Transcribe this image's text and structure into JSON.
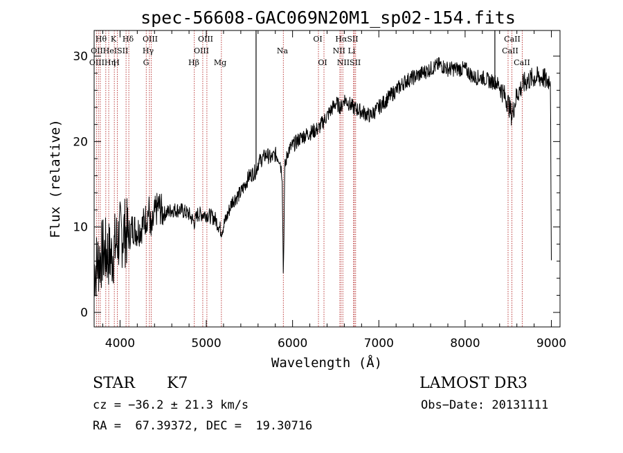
{
  "chart_data": {
    "type": "line",
    "title": "spec-56608-GAC069N20M1_sp02-154.fits",
    "xlabel": "Wavelength (Å)",
    "ylabel": "Flux (relative)",
    "xlim": [
      3700,
      9100
    ],
    "ylim": [
      -1.7,
      33
    ],
    "x_ticks": [
      4000,
      5000,
      6000,
      7000,
      8000,
      9000
    ],
    "x_tick_labels": [
      "4000",
      "5000",
      "6000",
      "7000",
      "8000",
      "9000"
    ],
    "y_ticks": [
      0,
      10,
      20,
      30
    ],
    "y_tick_labels": [
      "0",
      "10",
      "20",
      "30"
    ],
    "series": [
      {
        "name": "spectrum",
        "x": [
          3700,
          3750,
          3800,
          3850,
          3900,
          3950,
          4000,
          4050,
          4100,
          4150,
          4200,
          4250,
          4300,
          4340,
          4360,
          4400,
          4450,
          4500,
          4600,
          4700,
          4800,
          4861,
          4900,
          5000,
          5100,
          5175,
          5250,
          5300,
          5400,
          5500,
          5577,
          5600,
          5650,
          5700,
          5750,
          5800,
          5850,
          5880,
          5893,
          5910,
          5950,
          6000,
          6100,
          6200,
          6300,
          6400,
          6500,
          6563,
          6600,
          6700,
          6800,
          6900,
          7000,
          7100,
          7200,
          7300,
          7400,
          7500,
          7600,
          7700,
          7800,
          7900,
          8000,
          8100,
          8200,
          8300,
          8350,
          8400,
          8450,
          8500,
          8542,
          8600,
          8662,
          8700,
          8800,
          8900,
          8950,
          8990,
          9000
        ],
        "y": [
          5,
          6,
          7,
          7,
          6.5,
          8,
          9,
          9.5,
          9,
          10,
          9.5,
          10,
          11,
          12,
          9,
          11.5,
          12.5,
          11.5,
          12,
          12,
          11.5,
          10.5,
          11.5,
          11.5,
          11,
          9.5,
          11.5,
          13,
          14,
          16,
          16.5,
          17.5,
          18,
          18.5,
          18,
          18.5,
          18,
          16,
          4,
          17,
          19,
          19.5,
          20.5,
          21,
          21.5,
          23,
          24.5,
          24,
          25,
          24,
          23.5,
          23,
          24,
          25,
          26,
          27,
          27.5,
          28,
          28.5,
          29,
          28.5,
          28.5,
          28.5,
          27.5,
          27.5,
          27,
          27,
          26.5,
          25.5,
          24.5,
          23,
          25.5,
          26.5,
          27,
          27.5,
          27.5,
          27,
          27.5,
          5
        ]
      }
    ],
    "spikes": [
      {
        "x": 5577,
        "y": 33
      },
      {
        "x": 8345,
        "y": 33
      }
    ],
    "line_markers": [
      {
        "x": 3727,
        "label": "OII"
      },
      {
        "x": 3750,
        "label": "OIII"
      },
      {
        "x": 3771,
        "label": "Hθ"
      },
      {
        "x": 3835,
        "label": "Hη"
      },
      {
        "x": 3869,
        "label": "HeI"
      },
      {
        "x": 3934,
        "label": "K"
      },
      {
        "x": 3969,
        "label": "H"
      },
      {
        "x": 4070,
        "label": "SII"
      },
      {
        "x": 4102,
        "label": "Hδ"
      },
      {
        "x": 4304,
        "label": "G"
      },
      {
        "x": 4341,
        "label": "Hγ"
      },
      {
        "x": 4363,
        "label": "OIII"
      },
      {
        "x": 4861,
        "label": "Hβ"
      },
      {
        "x": 4959,
        "label": "OIII"
      },
      {
        "x": 5007,
        "label": "OIII"
      },
      {
        "x": 5175,
        "label": "Mg"
      },
      {
        "x": 5893,
        "label": "Na"
      },
      {
        "x": 6300,
        "label": "OI"
      },
      {
        "x": 6364,
        "label": "OI"
      },
      {
        "x": 6548,
        "label": "NII"
      },
      {
        "x": 6563,
        "label": "Hα"
      },
      {
        "x": 6583,
        "label": "NII"
      },
      {
        "x": 6707,
        "label": "Li"
      },
      {
        "x": 6716,
        "label": "SII"
      },
      {
        "x": 6731,
        "label": "SII"
      },
      {
        "x": 8498,
        "label": "CaII"
      },
      {
        "x": 8542,
        "label": "CaII"
      },
      {
        "x": 8662,
        "label": "CaII"
      }
    ],
    "line_label_text": [
      "Hθ",
      "K",
      "Hδ",
      "OIII",
      "OIII",
      "OI",
      "HαSII",
      "CaII",
      "OII",
      "HeISII",
      "Hγ",
      "OIII",
      "Na",
      "NII Li",
      "CaII",
      "OIIIHη",
      "H",
      "G",
      "Hβ",
      "Mg",
      "OI",
      "NIISII",
      "CaII"
    ]
  },
  "info": {
    "object_type": "STAR",
    "subclass": "K7",
    "survey": "LAMOST DR3",
    "redshift": "cz = −36.2 ± 21.3 km/s",
    "obs_date": "Obs−Date: 20131111",
    "coords": "RA =  67.39372, DEC =  19.30716"
  }
}
